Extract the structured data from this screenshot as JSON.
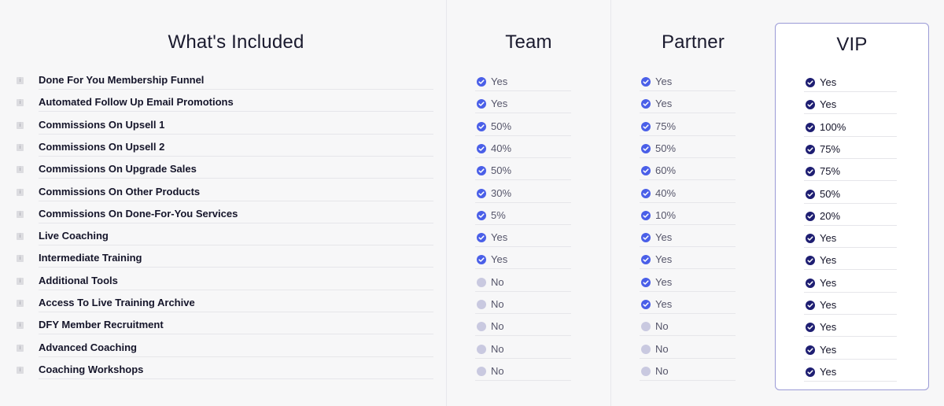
{
  "colors": {
    "check_on": "#4a5fe8",
    "check_off": "#c9c9e0",
    "check_vip": "#1e1e72",
    "vip_border": "#9a9ad6"
  },
  "headers": {
    "features": "What's Included",
    "team": "Team",
    "partner": "Partner",
    "vip": "VIP"
  },
  "features": [
    "Done For You Membership Funnel",
    "Automated Follow Up Email Promotions",
    "Commissions On Upsell 1",
    "Commissions On Upsell 2",
    "Commissions On Upgrade Sales",
    "Commissions On Other Products",
    "Commissions On Done-For-You Services",
    "Live Coaching",
    "Intermediate Training",
    "Additional Tools",
    "Access To Live Training Archive",
    "DFY Member Recruitment",
    "Advanced Coaching",
    "Coaching Workshops"
  ],
  "team": [
    {
      "value": "Yes",
      "included": true
    },
    {
      "value": "Yes",
      "included": true
    },
    {
      "value": "50%",
      "included": true
    },
    {
      "value": "40%",
      "included": true
    },
    {
      "value": "50%",
      "included": true
    },
    {
      "value": "30%",
      "included": true
    },
    {
      "value": "5%",
      "included": true
    },
    {
      "value": "Yes",
      "included": true
    },
    {
      "value": "Yes",
      "included": true
    },
    {
      "value": "No",
      "included": false
    },
    {
      "value": "No",
      "included": false
    },
    {
      "value": "No",
      "included": false
    },
    {
      "value": "No",
      "included": false
    },
    {
      "value": "No",
      "included": false
    }
  ],
  "partner": [
    {
      "value": "Yes",
      "included": true
    },
    {
      "value": "Yes",
      "included": true
    },
    {
      "value": "75%",
      "included": true
    },
    {
      "value": "50%",
      "included": true
    },
    {
      "value": "60%",
      "included": true
    },
    {
      "value": "40%",
      "included": true
    },
    {
      "value": "10%",
      "included": true
    },
    {
      "value": "Yes",
      "included": true
    },
    {
      "value": "Yes",
      "included": true
    },
    {
      "value": "Yes",
      "included": true
    },
    {
      "value": "Yes",
      "included": true
    },
    {
      "value": "No",
      "included": false
    },
    {
      "value": "No",
      "included": false
    },
    {
      "value": "No",
      "included": false
    }
  ],
  "vip": [
    {
      "value": "Yes",
      "included": true
    },
    {
      "value": "Yes",
      "included": true
    },
    {
      "value": "100%",
      "included": true
    },
    {
      "value": "75%",
      "included": true
    },
    {
      "value": "75%",
      "included": true
    },
    {
      "value": "50%",
      "included": true
    },
    {
      "value": "20%",
      "included": true
    },
    {
      "value": "Yes",
      "included": true
    },
    {
      "value": "Yes",
      "included": true
    },
    {
      "value": "Yes",
      "included": true
    },
    {
      "value": "Yes",
      "included": true
    },
    {
      "value": "Yes",
      "included": true
    },
    {
      "value": "Yes",
      "included": true
    },
    {
      "value": "Yes",
      "included": true
    }
  ]
}
